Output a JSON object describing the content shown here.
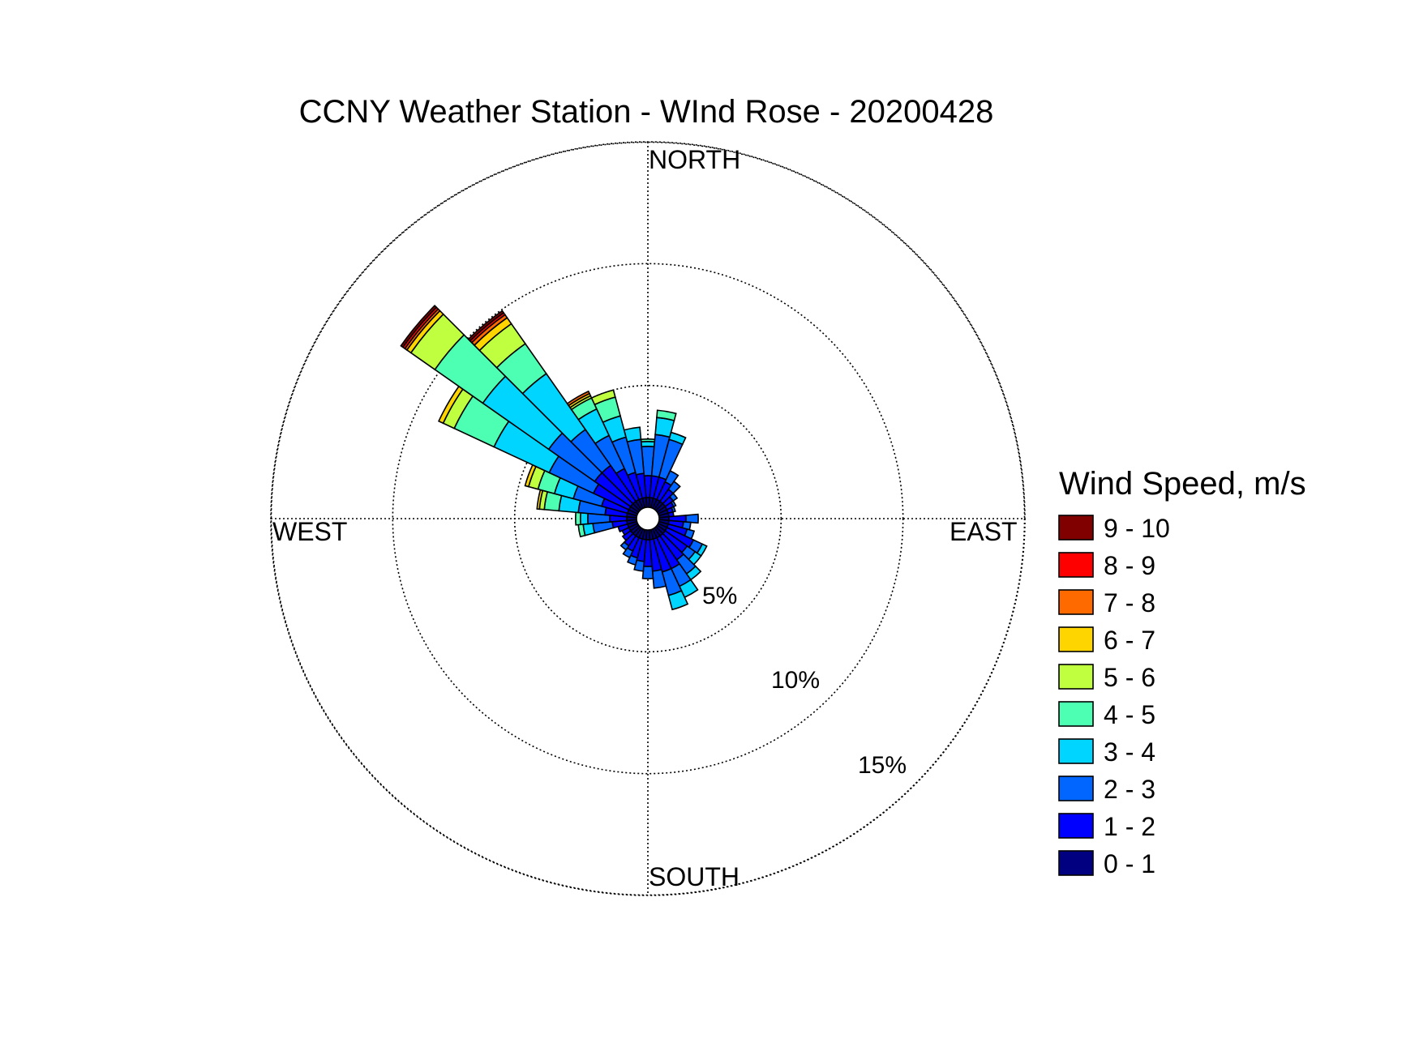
{
  "chart_data": {
    "type": "wind-rose",
    "title": "CCNY Weather Station - WInd Rose - 20200428",
    "direction_labels": {
      "north": "NORTH",
      "east": "EAST",
      "south": "SOUTH",
      "west": "WEST"
    },
    "ring_values": [
      5,
      10,
      15
    ],
    "ring_labels": [
      "5%",
      "10%",
      "15%"
    ],
    "max_percent": 15,
    "legend": {
      "title": "Wind Speed, m/s",
      "placement": "right",
      "bins": [
        {
          "label": "9 - 10",
          "color": "#800000"
        },
        {
          "label": "8 - 9",
          "color": "#ff0000"
        },
        {
          "label": "7 - 8",
          "color": "#ff6a00"
        },
        {
          "label": "6 - 7",
          "color": "#ffd500"
        },
        {
          "label": "5 - 6",
          "color": "#c0ff40"
        },
        {
          "label": "4 - 5",
          "color": "#4dffb3"
        },
        {
          "label": "3 - 4",
          "color": "#00d5ff"
        },
        {
          "label": "2 - 3",
          "color": "#0066ff"
        },
        {
          "label": "1 - 2",
          "color": "#0000ff"
        },
        {
          "label": "0 - 1",
          "color": "#000080"
        }
      ]
    },
    "sector_width_deg": 10,
    "speed_bins_order": [
      "0 - 1",
      "1 - 2",
      "2 - 3",
      "3 - 4",
      "4 - 5",
      "5 - 6",
      "6 - 7",
      "7 - 8",
      "8 - 9",
      "9 - 10"
    ],
    "sectors": [
      {
        "direction_deg": 0,
        "cumulative_percent": [
          0.4,
          1.3,
          2.5,
          2.7,
          2.8
        ]
      },
      {
        "direction_deg": 10,
        "cumulative_percent": [
          0.4,
          1.3,
          3.0,
          3.7,
          4.0
        ]
      },
      {
        "direction_deg": 20,
        "cumulative_percent": [
          0.4,
          1.3,
          2.9,
          3.2
        ]
      },
      {
        "direction_deg": 30,
        "cumulative_percent": [
          0.4,
          1.2,
          1.7
        ]
      },
      {
        "direction_deg": 40,
        "cumulative_percent": [
          0.4,
          1.0,
          1.4
        ]
      },
      {
        "direction_deg": 50,
        "cumulative_percent": [
          0.4,
          0.8,
          1.0
        ]
      },
      {
        "direction_deg": 60,
        "cumulative_percent": [
          0.4,
          0.7,
          0.8
        ]
      },
      {
        "direction_deg": 70,
        "cumulative_percent": [
          0.4,
          0.6,
          0.7
        ]
      },
      {
        "direction_deg": 80,
        "cumulative_percent": [
          0.4,
          0.6
        ]
      },
      {
        "direction_deg": 90,
        "cumulative_percent": [
          0.4,
          1.1,
          1.6
        ]
      },
      {
        "direction_deg": 100,
        "cumulative_percent": [
          0.4,
          1.0,
          1.3
        ]
      },
      {
        "direction_deg": 110,
        "cumulative_percent": [
          0.4,
          1.2,
          1.5
        ]
      },
      {
        "direction_deg": 120,
        "cumulative_percent": [
          0.4,
          1.6,
          2.0,
          2.2
        ]
      },
      {
        "direction_deg": 130,
        "cumulative_percent": [
          0.4,
          1.5,
          1.9,
          2.2
        ]
      },
      {
        "direction_deg": 140,
        "cumulative_percent": [
          0.4,
          1.6,
          2.3,
          2.6
        ]
      },
      {
        "direction_deg": 150,
        "cumulative_percent": [
          0.4,
          1.8,
          2.6,
          3.1
        ]
      },
      {
        "direction_deg": 160,
        "cumulative_percent": [
          0.4,
          1.8,
          2.8,
          3.4
        ]
      },
      {
        "direction_deg": 170,
        "cumulative_percent": [
          0.4,
          1.7,
          2.4
        ]
      },
      {
        "direction_deg": 180,
        "cumulative_percent": [
          0.4,
          1.5,
          2.0
        ]
      },
      {
        "direction_deg": 190,
        "cumulative_percent": [
          0.4,
          1.3,
          1.7
        ]
      },
      {
        "direction_deg": 200,
        "cumulative_percent": [
          0.4,
          1.2,
          1.5
        ]
      },
      {
        "direction_deg": 210,
        "cumulative_percent": [
          0.4,
          1.0,
          1.3
        ]
      },
      {
        "direction_deg": 220,
        "cumulative_percent": [
          0.4,
          0.9,
          1.1
        ]
      },
      {
        "direction_deg": 230,
        "cumulative_percent": [
          0.4,
          0.8
        ]
      },
      {
        "direction_deg": 240,
        "cumulative_percent": [
          0.4,
          0.7
        ]
      },
      {
        "direction_deg": 250,
        "cumulative_percent": [
          0.4,
          0.8
        ]
      },
      {
        "direction_deg": 260,
        "cumulative_percent": [
          0.4,
          1.0,
          1.8,
          2.2,
          2.4
        ]
      },
      {
        "direction_deg": 270,
        "cumulative_percent": [
          0.4,
          1.1,
          2.0,
          2.3,
          2.5
        ]
      },
      {
        "direction_deg": 280,
        "cumulative_percent": [
          0.4,
          1.3,
          2.4,
          3.2,
          3.8,
          4.0,
          4.1
        ]
      },
      {
        "direction_deg": 290,
        "cumulative_percent": [
          0.4,
          1.5,
          2.7,
          3.5,
          4.2,
          4.6,
          4.75
        ]
      },
      {
        "direction_deg": 300,
        "cumulative_percent": [
          0.4,
          2.0,
          4.0,
          6.5,
          8.3,
          8.8,
          9.0
        ]
      },
      {
        "direction_deg": 310,
        "cumulative_percent": [
          0.4,
          2.2,
          4.5,
          7.8,
          10.2,
          11.4,
          11.6,
          11.7,
          11.8,
          11.9
        ]
      },
      {
        "direction_deg": 320,
        "cumulative_percent": [
          0.4,
          2.2,
          4.0,
          6.8,
          8.3,
          9.3,
          9.6,
          9.75,
          9.85,
          9.95
        ]
      },
      {
        "direction_deg": 330,
        "cumulative_percent": [
          0.4,
          1.8,
          3.3,
          4.5,
          5.0,
          5.1,
          5.2,
          5.3
        ]
      },
      {
        "direction_deg": 340,
        "cumulative_percent": [
          0.4,
          1.5,
          3.0,
          3.9,
          4.7,
          5.0
        ]
      },
      {
        "direction_deg": 350,
        "cumulative_percent": [
          0.4,
          1.4,
          2.8,
          3.3
        ]
      }
    ]
  }
}
